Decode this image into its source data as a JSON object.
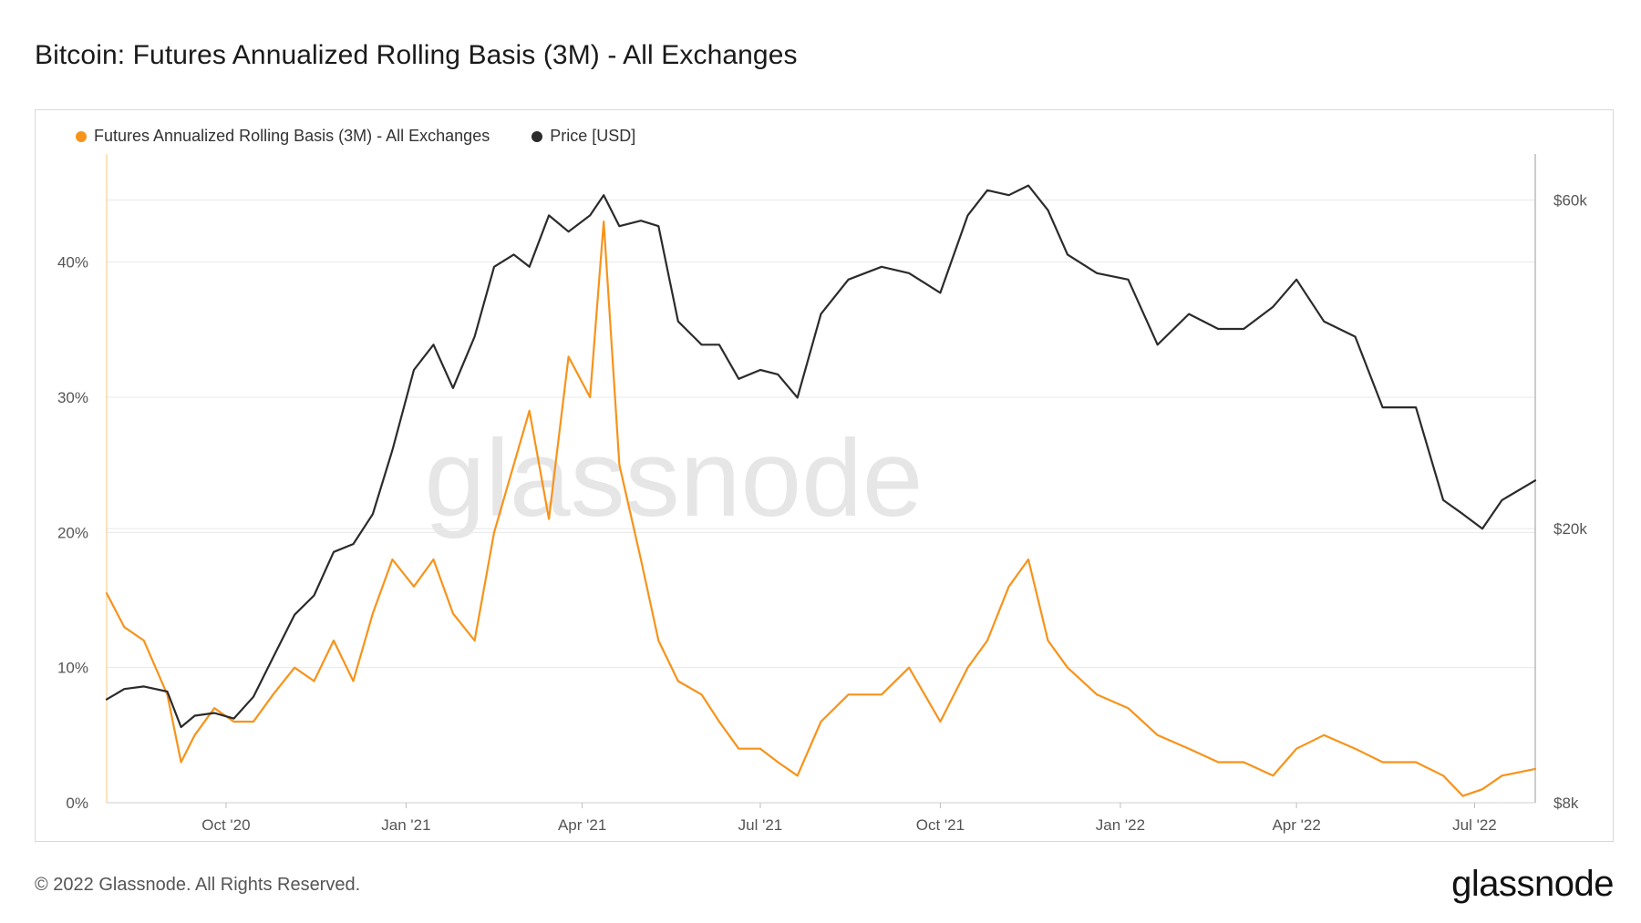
{
  "title": "Bitcoin: Futures Annualized Rolling Basis (3M) - All Exchanges",
  "footer": {
    "copyright": "© 2022 Glassnode. All Rights Reserved.",
    "logo": "glassnode"
  },
  "watermark": "glassnode",
  "colors": {
    "basis": "#f7931a",
    "price": "#2b2b2b",
    "grid": "#e8e8e8"
  },
  "chart_data": {
    "type": "line",
    "title": "Bitcoin: Futures Annualized Rolling Basis (3M) - All Exchanges",
    "legend": [
      {
        "name": "Futures Annualized Rolling Basis (3M) - All Exchanges",
        "color": "#f7931a"
      },
      {
        "name": "Price [USD]",
        "color": "#2b2b2b"
      }
    ],
    "legend_position": "top-left",
    "grid": true,
    "x_ticks": [
      "Oct '20",
      "Jan '21",
      "Apr '21",
      "Jul '21",
      "Oct '21",
      "Jan '22",
      "Apr '22",
      "Jul '22"
    ],
    "x_tick_dates": [
      "2020-10-01",
      "2021-01-01",
      "2021-04-01",
      "2021-07-01",
      "2021-10-01",
      "2022-01-01",
      "2022-04-01",
      "2022-07-01"
    ],
    "x_range": [
      "2020-08-01",
      "2022-08-01"
    ],
    "y_left": {
      "label": "",
      "ticks": [
        "0%",
        "10%",
        "20%",
        "30%",
        "40%"
      ],
      "tick_values": [
        0,
        10,
        20,
        30,
        40
      ],
      "range": [
        0,
        48
      ]
    },
    "y_right": {
      "label": "",
      "scale": "log",
      "ticks": [
        "$8k",
        "$20k",
        "$60k"
      ],
      "tick_values": [
        8000,
        20000,
        60000
      ],
      "range": [
        8000,
        70000
      ]
    },
    "series": [
      {
        "name": "Futures Annualized Rolling Basis (3M) - All Exchanges",
        "axis": "left",
        "x": [
          "2020-08-01",
          "2020-08-10",
          "2020-08-20",
          "2020-09-01",
          "2020-09-08",
          "2020-09-15",
          "2020-09-25",
          "2020-10-05",
          "2020-10-15",
          "2020-10-25",
          "2020-11-05",
          "2020-11-15",
          "2020-11-25",
          "2020-12-05",
          "2020-12-15",
          "2020-12-25",
          "2021-01-05",
          "2021-01-15",
          "2021-01-25",
          "2021-02-05",
          "2021-02-15",
          "2021-02-25",
          "2021-03-05",
          "2021-03-15",
          "2021-03-25",
          "2021-04-05",
          "2021-04-12",
          "2021-04-20",
          "2021-05-01",
          "2021-05-10",
          "2021-05-20",
          "2021-06-01",
          "2021-06-10",
          "2021-06-20",
          "2021-07-01",
          "2021-07-10",
          "2021-07-20",
          "2021-08-01",
          "2021-08-15",
          "2021-09-01",
          "2021-09-15",
          "2021-10-01",
          "2021-10-15",
          "2021-10-25",
          "2021-11-05",
          "2021-11-15",
          "2021-11-25",
          "2021-12-05",
          "2021-12-20",
          "2022-01-05",
          "2022-01-20",
          "2022-02-05",
          "2022-02-20",
          "2022-03-05",
          "2022-03-20",
          "2022-04-01",
          "2022-04-15",
          "2022-05-01",
          "2022-05-15",
          "2022-06-01",
          "2022-06-15",
          "2022-06-25",
          "2022-07-05",
          "2022-07-15",
          "2022-08-01"
        ],
        "values": [
          15.5,
          13,
          12,
          8,
          3,
          5,
          7,
          6,
          6,
          8,
          10,
          9,
          12,
          9,
          14,
          18,
          16,
          18,
          14,
          12,
          20,
          25,
          29,
          21,
          33,
          30,
          43,
          25,
          18,
          12,
          9,
          8,
          6,
          4,
          4,
          3,
          2,
          6,
          8,
          8,
          10,
          6,
          10,
          12,
          16,
          18,
          12,
          10,
          8,
          7,
          5,
          4,
          3,
          3,
          2,
          4,
          5,
          4,
          3,
          3,
          2,
          0.5,
          1,
          2,
          2.5
        ]
      },
      {
        "name": "Price [USD]",
        "axis": "right",
        "x": [
          "2020-08-01",
          "2020-08-10",
          "2020-08-20",
          "2020-09-01",
          "2020-09-08",
          "2020-09-15",
          "2020-09-25",
          "2020-10-05",
          "2020-10-15",
          "2020-10-25",
          "2020-11-05",
          "2020-11-15",
          "2020-11-25",
          "2020-12-05",
          "2020-12-15",
          "2020-12-25",
          "2021-01-05",
          "2021-01-15",
          "2021-01-25",
          "2021-02-05",
          "2021-02-15",
          "2021-02-25",
          "2021-03-05",
          "2021-03-15",
          "2021-03-25",
          "2021-04-05",
          "2021-04-12",
          "2021-04-20",
          "2021-05-01",
          "2021-05-10",
          "2021-05-20",
          "2021-06-01",
          "2021-06-10",
          "2021-06-20",
          "2021-07-01",
          "2021-07-10",
          "2021-07-20",
          "2021-08-01",
          "2021-08-15",
          "2021-09-01",
          "2021-09-15",
          "2021-10-01",
          "2021-10-15",
          "2021-10-25",
          "2021-11-05",
          "2021-11-15",
          "2021-11-25",
          "2021-12-05",
          "2021-12-20",
          "2022-01-05",
          "2022-01-20",
          "2022-02-05",
          "2022-02-20",
          "2022-03-05",
          "2022-03-20",
          "2022-04-01",
          "2022-04-15",
          "2022-05-01",
          "2022-05-15",
          "2022-06-01",
          "2022-06-15",
          "2022-06-25",
          "2022-07-05",
          "2022-07-15",
          "2022-08-01"
        ],
        "values": [
          11300,
          11700,
          11800,
          11600,
          10300,
          10700,
          10800,
          10600,
          11400,
          13000,
          15000,
          16000,
          18500,
          19000,
          21000,
          26000,
          34000,
          37000,
          32000,
          38000,
          48000,
          50000,
          48000,
          57000,
          54000,
          57000,
          61000,
          55000,
          56000,
          55000,
          40000,
          37000,
          37000,
          33000,
          34000,
          33500,
          31000,
          41000,
          46000,
          48000,
          47000,
          44000,
          57000,
          62000,
          61000,
          63000,
          58000,
          50000,
          47000,
          46000,
          37000,
          41000,
          39000,
          39000,
          42000,
          46000,
          40000,
          38000,
          30000,
          30000,
          22000,
          21000,
          20000,
          22000,
          23500
        ]
      }
    ]
  }
}
